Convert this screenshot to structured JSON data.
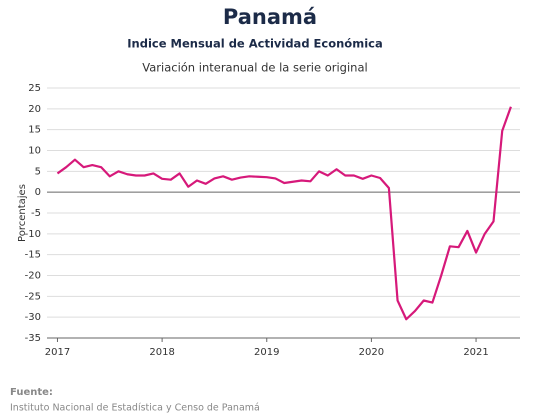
{
  "chart_data": {
    "type": "line",
    "title": "Panamá",
    "subtitle": "Indice Mensual de  Actividad Económica",
    "note": "Variación interanual de la serie original",
    "y_label": "Porcentajes",
    "source_label": "Fuente:",
    "source": "Instituto Nacional de Estadística y Censo de Panamá",
    "x": [
      2017,
      2017.083,
      2017.167,
      2017.25,
      2017.333,
      2017.417,
      2017.5,
      2017.583,
      2017.667,
      2017.75,
      2017.833,
      2017.917,
      2018,
      2018.083,
      2018.167,
      2018.25,
      2018.333,
      2018.417,
      2018.5,
      2018.583,
      2018.667,
      2018.75,
      2018.833,
      2018.917,
      2019,
      2019.083,
      2019.167,
      2019.25,
      2019.333,
      2019.417,
      2019.5,
      2019.583,
      2019.667,
      2019.75,
      2019.833,
      2019.917,
      2020,
      2020.083,
      2020.167,
      2020.25,
      2020.333,
      2020.417,
      2020.5,
      2020.583,
      2020.667,
      2020.75,
      2020.833,
      2020.917,
      2021,
      2021.083,
      2021.167,
      2021.25,
      2021.333
    ],
    "series": [
      {
        "color": "#d6197a",
        "values": [
          4.5,
          6,
          7.8,
          6,
          6.5,
          6,
          3.8,
          5,
          4.3,
          4,
          4,
          4.5,
          3.2,
          3,
          4.5,
          1.3,
          2.8,
          2,
          3.3,
          3.8,
          3,
          3.5,
          3.8,
          3.7,
          3.6,
          3.3,
          2.2,
          2.5,
          2.8,
          2.6,
          5,
          4,
          5.5,
          4,
          4,
          3.2,
          4,
          3.4,
          1,
          -26,
          -30.5,
          -28.5,
          -26,
          -26.5,
          -20,
          -13,
          -13.2,
          -9.3,
          -14.5,
          -10,
          -7,
          14.7,
          20.5
        ]
      }
    ],
    "xlim": [
      2016.9,
      2021.42
    ],
    "xticks": [
      2017,
      2018,
      2019,
      2020,
      2021
    ],
    "ylim": [
      -35,
      25
    ],
    "yticks": [
      25,
      20,
      15,
      10,
      5,
      0,
      -5,
      -10,
      -15,
      -20,
      -25,
      -30,
      -35
    ],
    "grid": true
  }
}
